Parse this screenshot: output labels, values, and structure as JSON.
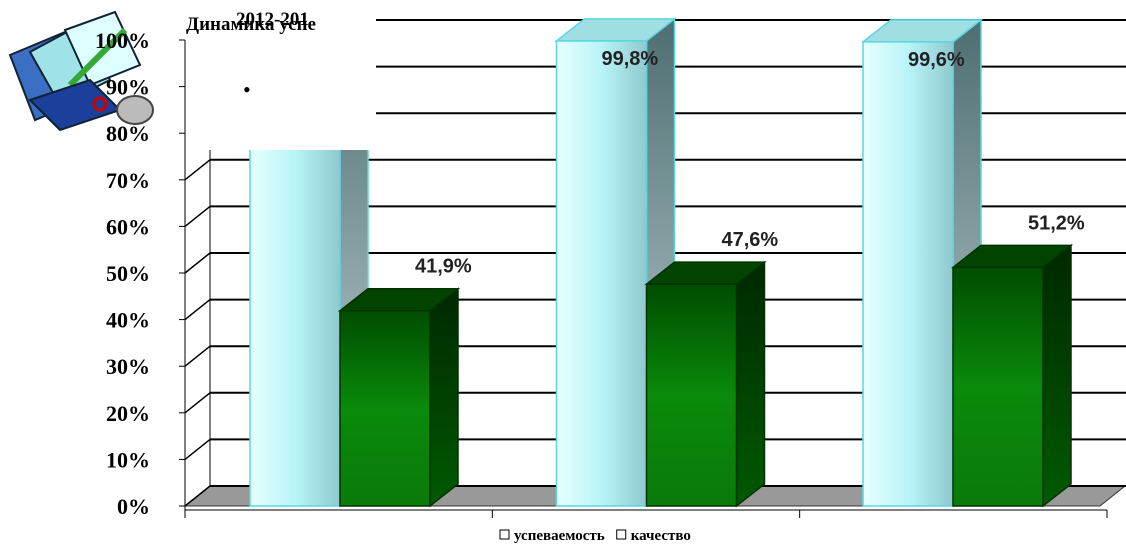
{
  "chart_data": {
    "type": "bar3d",
    "title": "Динамика успе",
    "subtitle": "2012-201",
    "annotations": [
      "•"
    ],
    "categories": [
      null,
      null,
      null
    ],
    "series": [
      {
        "name": "успеваемость",
        "color": "#c8fbff",
        "values": [
          100,
          99.8,
          99.6
        ],
        "value_labels": [
          null,
          "99,8%",
          "99,6%"
        ]
      },
      {
        "name": "качество",
        "color": "#0a7a0a",
        "values": [
          41.9,
          47.6,
          51.2
        ],
        "value_labels": [
          "41,9%",
          "47,6%",
          "51,2%"
        ]
      }
    ],
    "ylim": [
      0,
      100
    ],
    "yticks": [
      {
        "value": 0,
        "label": "0%"
      },
      {
        "value": 10,
        "label": "10%"
      },
      {
        "value": 20,
        "label": "20%"
      },
      {
        "value": 30,
        "label": "30%"
      },
      {
        "value": 40,
        "label": "40%"
      },
      {
        "value": 50,
        "label": "50%"
      },
      {
        "value": 60,
        "label": "60%"
      },
      {
        "value": 70,
        "label": "70%"
      },
      {
        "value": 80,
        "label": "80%"
      },
      {
        "value": 90,
        "label": "90%"
      },
      {
        "value": 100,
        "label": "100%"
      }
    ],
    "grid": true,
    "legend": "bottom"
  }
}
